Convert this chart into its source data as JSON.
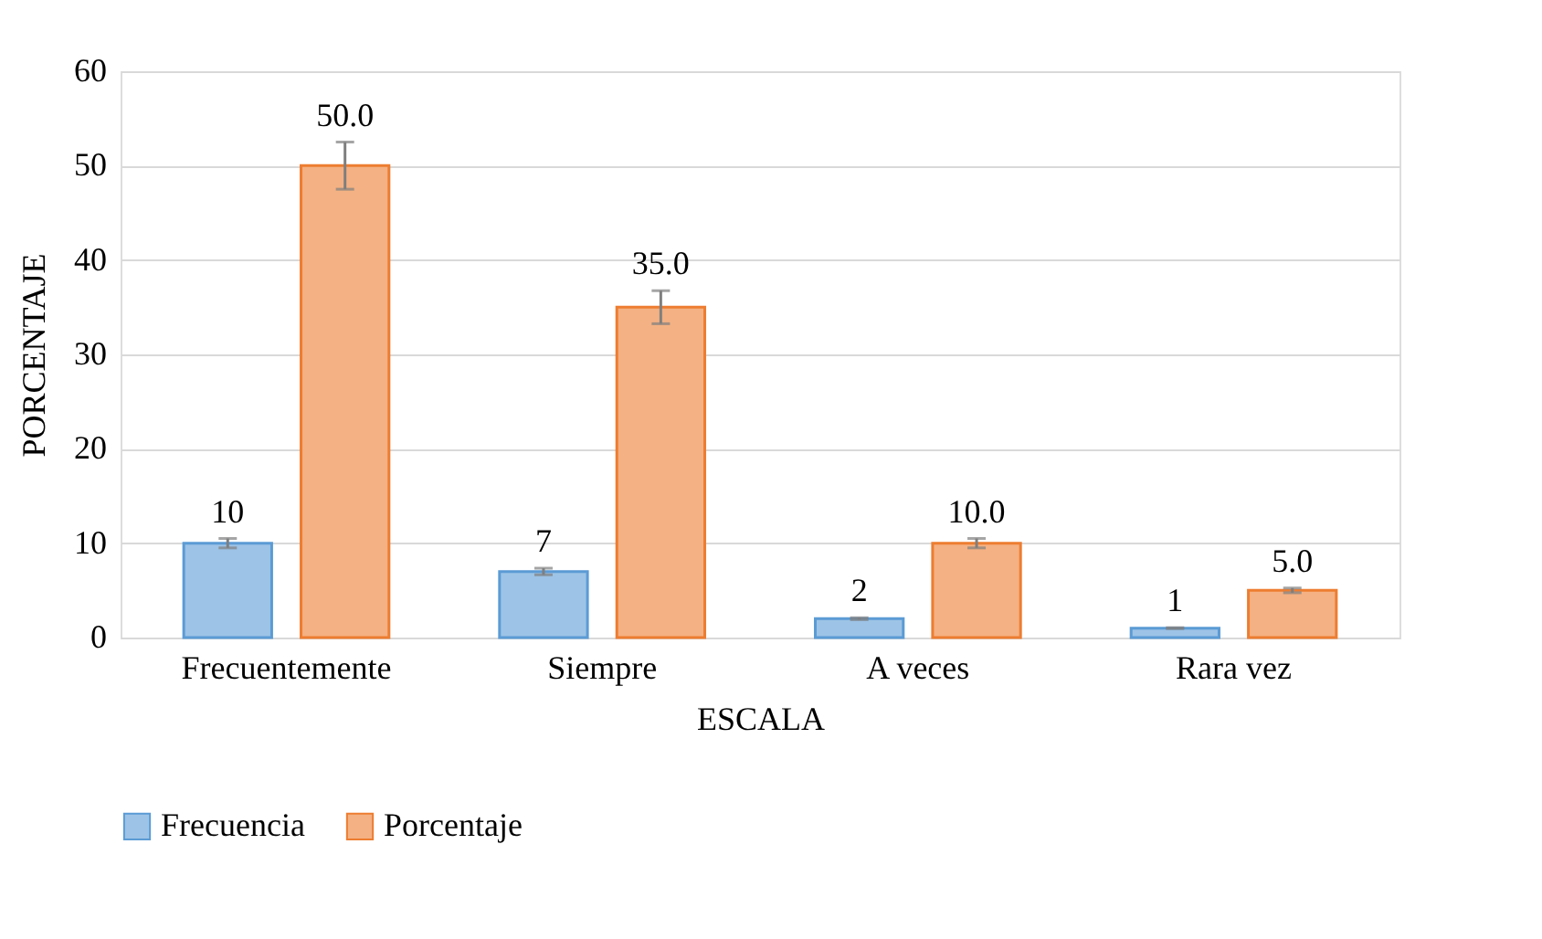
{
  "chart_data": {
    "type": "bar",
    "xlabel": "ESCALA",
    "ylabel": "PORCENTAJE",
    "categories": [
      "Frecuentemente",
      "Siempre",
      "A veces",
      "Rara vez"
    ],
    "series": [
      {
        "name": "Frecuencia",
        "color": "#9dc3e6",
        "values": [
          10,
          7,
          2,
          1
        ],
        "errors": [
          0.5,
          0.35,
          0.1,
          0.05
        ],
        "value_labels": [
          "10",
          "7",
          "2",
          "1"
        ]
      },
      {
        "name": "Porcentaje",
        "color": "#f4b183",
        "values": [
          50,
          35,
          10,
          5
        ],
        "errors": [
          2.5,
          1.75,
          0.5,
          0.25
        ],
        "value_labels": [
          "50.0",
          "35.0",
          "10.0",
          "5.0"
        ]
      }
    ],
    "ylim": [
      0,
      60
    ],
    "yticks": [
      0,
      10,
      20,
      30,
      40,
      50,
      60
    ],
    "grid": "y",
    "legend": "bottom"
  }
}
